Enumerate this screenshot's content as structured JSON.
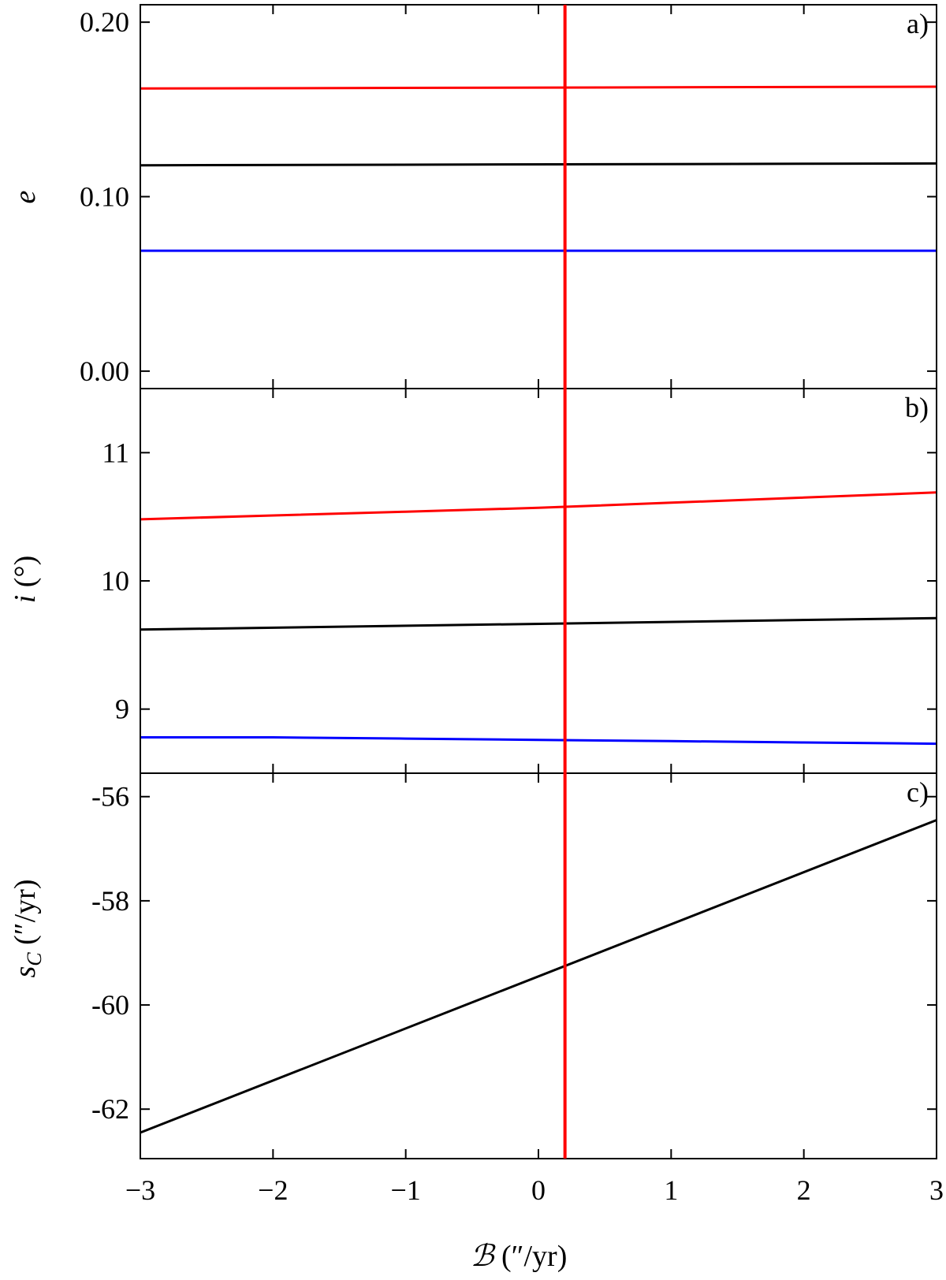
{
  "chart_data": [
    {
      "type": "line",
      "panel": "a)",
      "ylabel": "e",
      "xlim": [
        -3,
        3
      ],
      "ylim": [
        -0.01,
        0.21
      ],
      "yticks": [
        "0.00",
        "0.10",
        "0.20"
      ],
      "ytick_values": [
        0.0,
        0.1,
        0.2
      ],
      "grid": false,
      "series": [
        {
          "color": "#ff0000",
          "x": [
            -3,
            3
          ],
          "y": [
            0.162,
            0.163
          ]
        },
        {
          "color": "#000000",
          "x": [
            -3,
            3
          ],
          "y": [
            0.118,
            0.119
          ]
        },
        {
          "color": "#0000ff",
          "x": [
            -3,
            3
          ],
          "y": [
            0.069,
            0.069
          ]
        }
      ]
    },
    {
      "type": "line",
      "panel": "b)",
      "ylabel": "i (°)",
      "xlim": [
        -3,
        3
      ],
      "ylim": [
        8.5,
        11.5
      ],
      "yticks": [
        "9",
        "10",
        "11"
      ],
      "ytick_values": [
        9,
        10,
        11
      ],
      "grid": false,
      "series": [
        {
          "color": "#ff0000",
          "x": [
            -3,
            -2,
            -1,
            0,
            1,
            2,
            3
          ],
          "y": [
            10.48,
            10.51,
            10.54,
            10.57,
            10.61,
            10.65,
            10.69
          ]
        },
        {
          "color": "#000000",
          "x": [
            -3,
            3
          ],
          "y": [
            9.62,
            9.71
          ]
        },
        {
          "color": "#0000ff",
          "x": [
            -3,
            -2,
            -1,
            0,
            1,
            2,
            3
          ],
          "y": [
            8.78,
            8.78,
            8.77,
            8.76,
            8.75,
            8.74,
            8.73
          ]
        }
      ]
    },
    {
      "type": "line",
      "panel": "c)",
      "ylabel": "sC (″/yr)",
      "xlabel": "ℬ (″/yr)",
      "xlim": [
        -3,
        3
      ],
      "ylim": [
        -62.95,
        -55.55
      ],
      "xticks": [
        "−3",
        "−2",
        "−1",
        "0",
        "1",
        "2",
        "3"
      ],
      "xtick_values": [
        -3,
        -2,
        -1,
        0,
        1,
        2,
        3
      ],
      "yticks": [
        "-56",
        "-58",
        "-60",
        "-62"
      ],
      "ytick_values": [
        -56,
        -58,
        -60,
        -62
      ],
      "grid": false,
      "series": [
        {
          "color": "#000000",
          "x": [
            -3,
            3
          ],
          "y": [
            -62.45,
            -56.45
          ]
        }
      ]
    }
  ],
  "marker_line": {
    "x": 0.2,
    "color": "#ff0000"
  },
  "labels": {
    "ylabel_a": "e",
    "ylabel_b_sym": "i",
    "ylabel_b_unit": " (°)",
    "ylabel_c_sym": "s",
    "ylabel_c_sub": "C",
    "ylabel_c_unit": " (″/yr)",
    "xlabel_sym": "ℬ",
    "xlabel_unit": " (″/yr)"
  }
}
